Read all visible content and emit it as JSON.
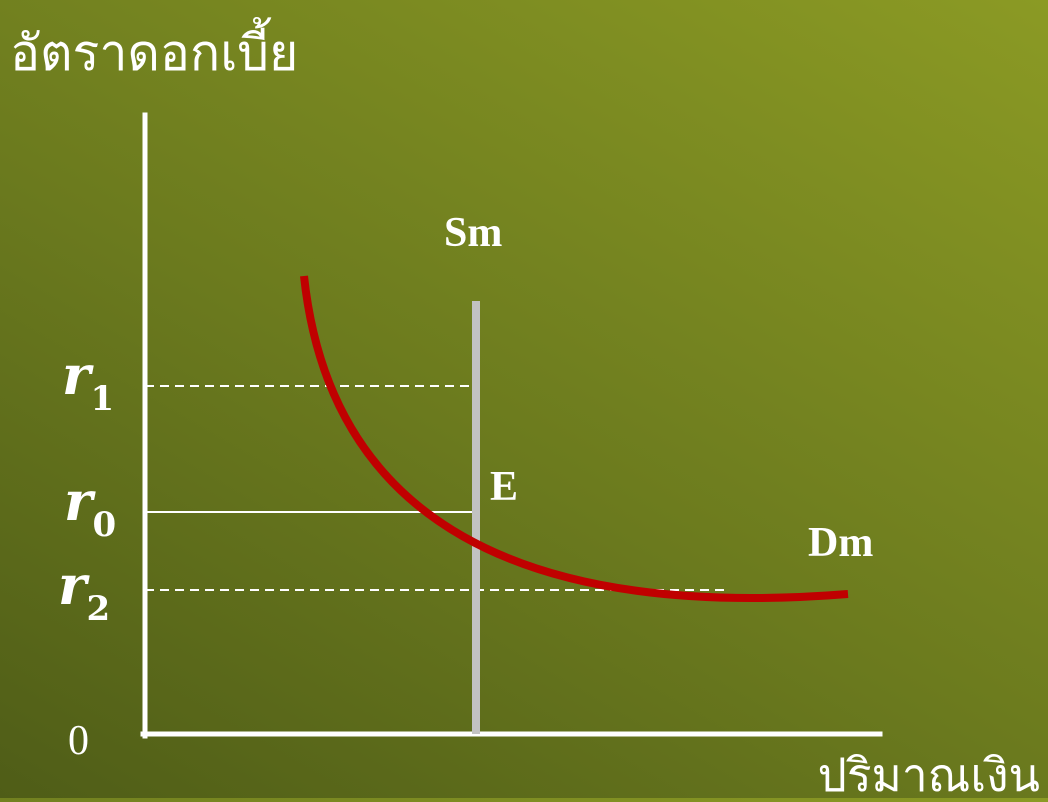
{
  "diagram": {
    "y_axis_title": "อัตราดอกเบี้ย",
    "x_axis_title": "ปริมาณเงิน",
    "origin_label": "0",
    "rates": [
      {
        "symbol": "r",
        "subscript": "1"
      },
      {
        "symbol": "r",
        "subscript": "0"
      },
      {
        "symbol": "r",
        "subscript": "2"
      }
    ],
    "supply_label": "Sm",
    "demand_label": "Dm",
    "equilibrium_label": "E",
    "colors": {
      "axis": "#ffffff",
      "supply_line": "#c2c2c2",
      "demand_curve": "#c00000",
      "guide_lines": "#ffffff"
    }
  }
}
